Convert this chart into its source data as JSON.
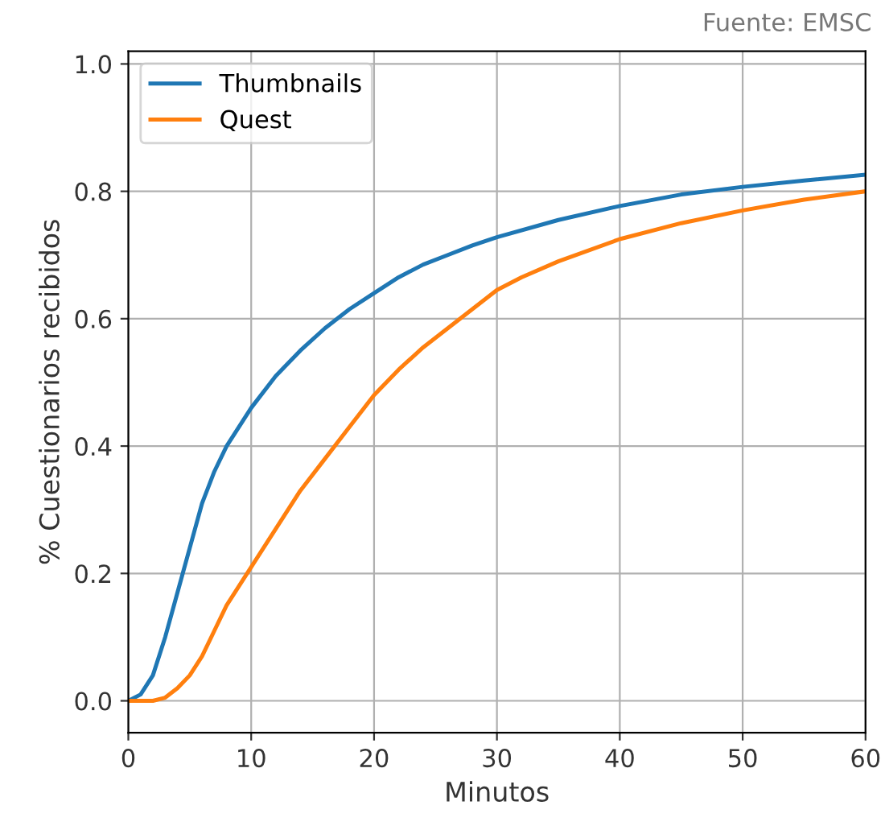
{
  "chart_data": {
    "type": "line",
    "xlabel": "Minutos",
    "ylabel": "% Cuestionarios recibidos",
    "annotations": [
      "Fuente: EMSC"
    ],
    "xlim": [
      0,
      60
    ],
    "ylim": [
      -0.05,
      1.02
    ],
    "xticks": [
      0,
      10,
      20,
      30,
      40,
      50,
      60
    ],
    "yticks": [
      {
        "value": 0,
        "label": "0.0"
      },
      {
        "value": 0.2,
        "label": "0.2"
      },
      {
        "value": 0.4,
        "label": "0.4"
      },
      {
        "value": 0.6,
        "label": "0.6"
      },
      {
        "value": 0.8,
        "label": "0.8"
      },
      {
        "value": 1.0,
        "label": "1.0"
      }
    ],
    "grid": true,
    "legend": "top left",
    "series": [
      {
        "name": "Thumbnails",
        "color": "#1f77b4",
        "x": [
          0,
          1,
          2,
          3,
          4,
          5,
          6,
          7,
          8,
          10,
          12,
          14,
          16,
          18,
          20,
          22,
          24,
          26,
          28,
          30,
          35,
          40,
          45,
          50,
          55,
          60
        ],
        "values": [
          0,
          0.01,
          0.04,
          0.1,
          0.17,
          0.24,
          0.31,
          0.36,
          0.4,
          0.46,
          0.51,
          0.55,
          0.585,
          0.615,
          0.64,
          0.665,
          0.685,
          0.7,
          0.715,
          0.728,
          0.755,
          0.777,
          0.795,
          0.807,
          0.817,
          0.826
        ]
      },
      {
        "name": "Quest",
        "color": "#ff7f0e",
        "x": [
          0,
          2,
          3,
          4,
          5,
          6,
          7,
          8,
          10,
          12,
          14,
          16,
          18,
          20,
          22,
          24,
          26,
          28,
          30,
          32,
          35,
          40,
          45,
          50,
          55,
          60
        ],
        "values": [
          0,
          0,
          0.005,
          0.02,
          0.04,
          0.07,
          0.11,
          0.15,
          0.21,
          0.27,
          0.33,
          0.38,
          0.43,
          0.48,
          0.52,
          0.555,
          0.585,
          0.615,
          0.645,
          0.665,
          0.69,
          0.725,
          0.75,
          0.77,
          0.787,
          0.8
        ]
      }
    ]
  }
}
